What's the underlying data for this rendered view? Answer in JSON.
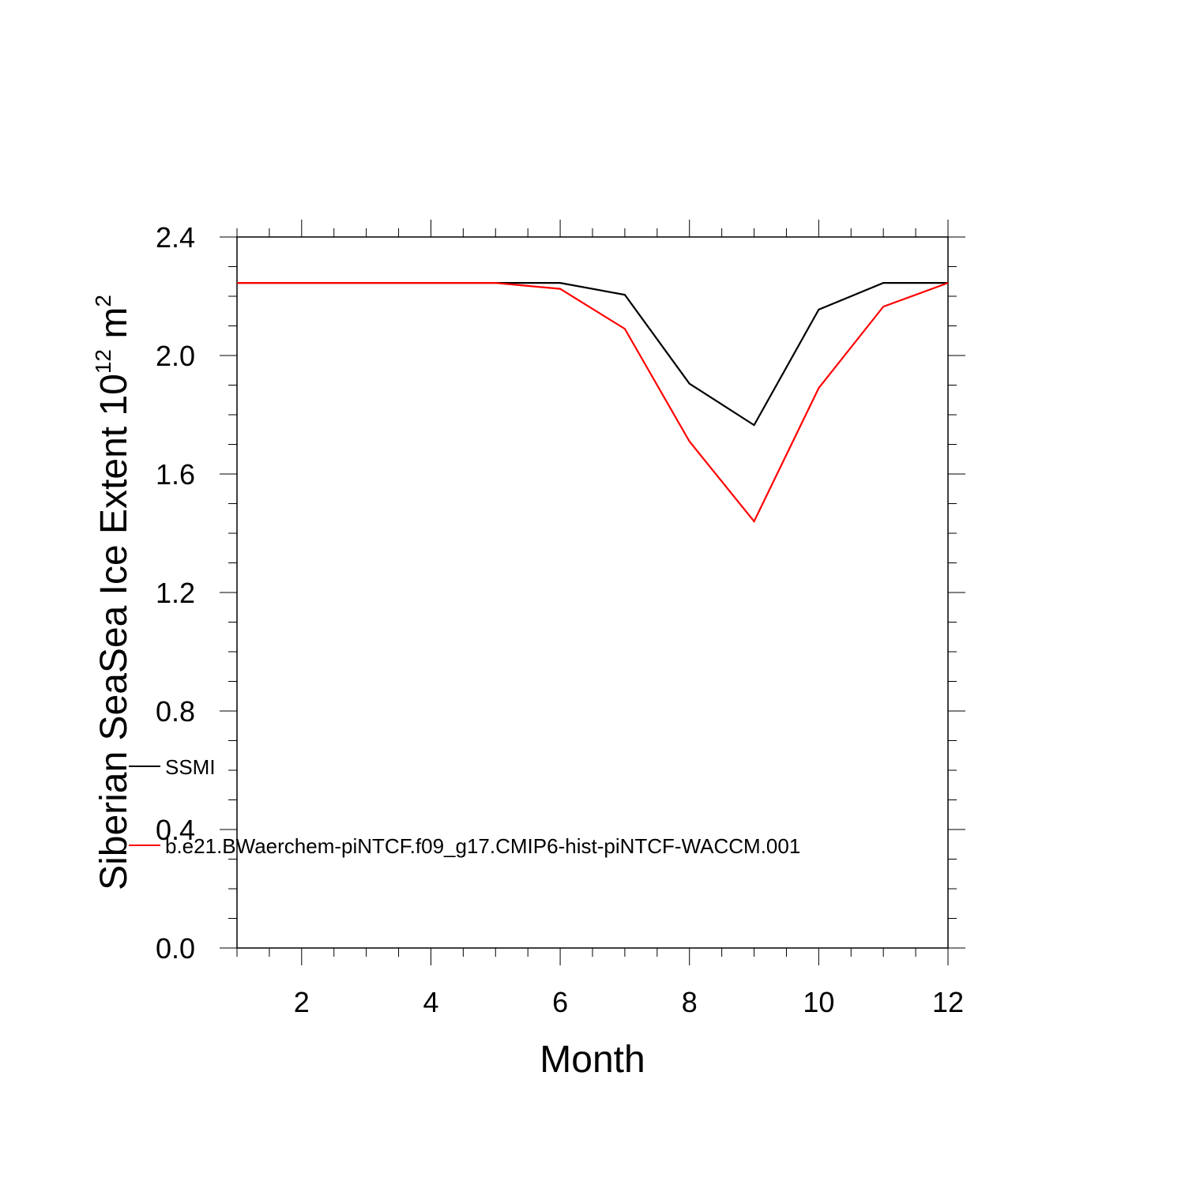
{
  "chart_data": {
    "type": "line",
    "xlabel": "Month",
    "ylabel": {
      "base": "Siberian SeaSea Ice Extent 10",
      "exponent_sup": "12",
      "unit": " m",
      "unit_sup": "2"
    },
    "xlim": [
      1,
      12
    ],
    "ylim": [
      0.0,
      2.4
    ],
    "x_major_ticks": [
      2,
      4,
      6,
      8,
      10,
      12
    ],
    "x_tick_labels": [
      "2",
      "4",
      "6",
      "8",
      "10",
      "12"
    ],
    "y_major_ticks": [
      0.0,
      0.4,
      0.8,
      1.2,
      1.6,
      2.0,
      2.4
    ],
    "y_tick_labels": [
      "0.0",
      "0.4",
      "0.8",
      "1.2",
      "1.6",
      "2.0",
      "2.4"
    ],
    "grid": false,
    "legend_placement": "lower-left",
    "x": [
      1,
      2,
      3,
      4,
      5,
      6,
      7,
      8,
      9,
      10,
      11,
      12
    ],
    "series": [
      {
        "name": "SSMI",
        "color": "#000000",
        "values": [
          2.245,
          2.245,
          2.245,
          2.245,
          2.245,
          2.245,
          2.205,
          1.905,
          1.765,
          2.155,
          2.245,
          2.245
        ]
      },
      {
        "name": "b.e21.BWaerchem-piNTCF.f09_g17.CMIP6-hist-piNTCF-WACCM.001",
        "color": "#ff0000",
        "values": [
          2.245,
          2.245,
          2.245,
          2.245,
          2.245,
          2.225,
          2.09,
          1.71,
          1.44,
          1.89,
          2.165,
          2.245
        ]
      }
    ]
  }
}
